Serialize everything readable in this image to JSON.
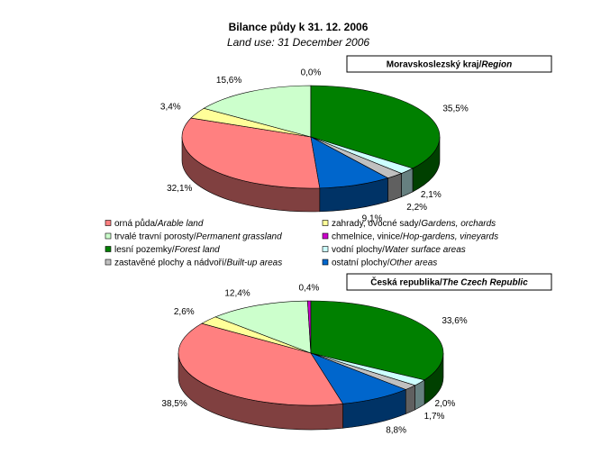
{
  "chart_data": {
    "type": "pie",
    "title": "Bilance půdy k 31. 12. 2006",
    "subtitle": "Land use: 31 December 2006",
    "categories": [
      "orná půda/Arable land",
      "zahrady, ovocné sady/Gardens, orchards",
      "trvalé travní porosty/Permanent grassland",
      "chmelnice, vinice/Hop-gardens, vineyards",
      "lesní pozemky/Forest land",
      "vodní plochy/Water surface areas",
      "zastavěné plochy a nádvoří/Built-up areas",
      "ostatní plochy/Other areas"
    ],
    "colors": [
      "#ff8080",
      "#ffff99",
      "#ccffcc",
      "#cc00cc",
      "#008000",
      "#ccffff",
      "#c0c0c0",
      "#0066cc"
    ],
    "pies": [
      {
        "label": "Moravskoslezský kraj/Region",
        "values": [
          32.1,
          3.4,
          15.6,
          0.0,
          35.5,
          2.1,
          2.2,
          9.1
        ],
        "value_labels": [
          "32,1%",
          "3,4%",
          "15,6%",
          "0,0%",
          "35,5%",
          "2,1%",
          "2,2%",
          "9,1%"
        ]
      },
      {
        "label": "Česká republika/The Czech Republic",
        "values": [
          38.5,
          2.6,
          12.4,
          0.4,
          33.6,
          2.0,
          1.7,
          8.8
        ],
        "value_labels": [
          "38,5%",
          "2,6%",
          "12,4%",
          "0,4%",
          "33,6%",
          "2,0%",
          "1,7%",
          "8,8%"
        ]
      }
    ]
  }
}
